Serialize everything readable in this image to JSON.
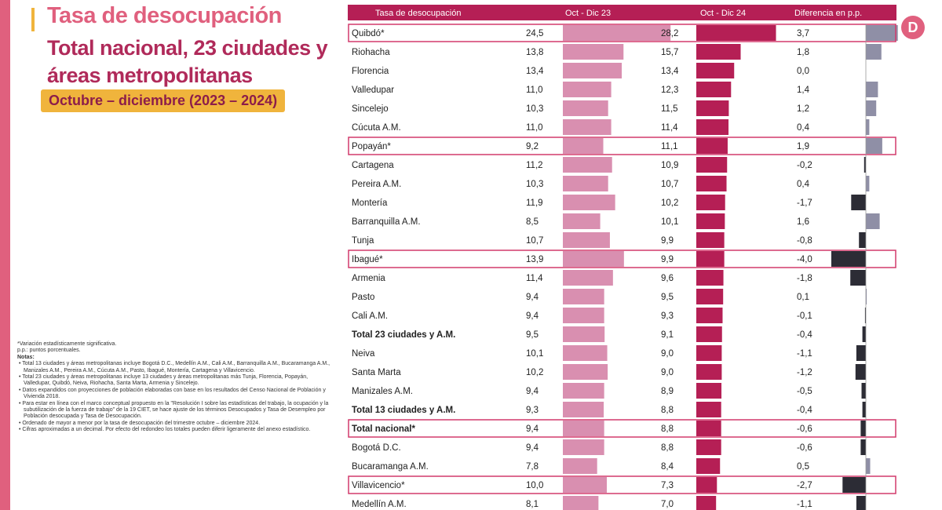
{
  "header": {
    "title_line1": "Tasa de desocupación",
    "title_line2": "Total nacional, 23 ciudades y áreas metropolitanas",
    "subtitle": "Octubre – diciembre (2023 – 2024)"
  },
  "notes": {
    "significance": "*Variación estadísticamente significativa.",
    "pp": "p.p.: puntos porcentuales.",
    "heading": "Notas:",
    "items": [
      "Total 13 ciudades y áreas metropolitanas incluye Bogotá D.C., Medellín A.M., Cali A.M., Barranquilla A.M., Bucaramanga A.M., Manizales A.M., Pereira A.M., Cúcuta A.M., Pasto, Ibagué, Montería, Cartagena y Villavicencio.",
      "Total 23 ciudades y áreas metropolitanas incluye 13 ciudades y áreas metropolitanas más Tunja, Florencia, Popayán, Valledupar, Quibdó, Neiva, Riohacha, Santa Marta, Armenia y Sincelejo.",
      "Datos expandidos con proyecciones de población elaboradas con base en los resultados del Censo Nacional de Población y Vivienda 2018.",
      "Para estar en línea con el marco conceptual propuesto en la \"Resolución I sobre las estadísticas del trabajo, la ocupación y la subutilización de la fuerza de trabajo\" de la 19 CIET, se hace ajuste de los términos Desocupados y Tasa de Desempleo por Población desocupada y Tasa de Desocupación.",
      "Ordenado de mayor a menor por la tasa de desocupación del trimestre octubre – diciembre 2024.",
      "Cifras aproximadas a un decimal. Por efecto del redondeo los totales pueden diferir ligeramente del anexo estadístico."
    ]
  },
  "logo_text": "D",
  "colors": {
    "header_bg": "#b51f55",
    "bar_2023": "#d98fb0",
    "bar_2024": "#b51f55",
    "diff_pos": "#8f8fa6",
    "diff_neg": "#2c2c35",
    "highlight": "#d23a6c",
    "accent": "#e0607e",
    "yellow": "#f0b43c"
  },
  "chart_data": {
    "type": "table",
    "columns": [
      "Tasa de desocupación",
      "Oct - Dic 23",
      "Oct - Dic 24",
      "Diferencia en p.p."
    ],
    "rows": [
      {
        "name": "Quibdó*",
        "v2023": "24,5",
        "v2024": "28,2",
        "diff": "3,7",
        "bold": false,
        "highlight": true
      },
      {
        "name": "Riohacha",
        "v2023": "13,8",
        "v2024": "15,7",
        "diff": "1,8",
        "bold": false,
        "highlight": false
      },
      {
        "name": "Florencia",
        "v2023": "13,4",
        "v2024": "13,4",
        "diff": "0,0",
        "bold": false,
        "highlight": false
      },
      {
        "name": "Valledupar",
        "v2023": "11,0",
        "v2024": "12,3",
        "diff": "1,4",
        "bold": false,
        "highlight": false
      },
      {
        "name": "Sincelejo",
        "v2023": "10,3",
        "v2024": "11,5",
        "diff": "1,2",
        "bold": false,
        "highlight": false
      },
      {
        "name": "Cúcuta A.M.",
        "v2023": "11,0",
        "v2024": "11,4",
        "diff": "0,4",
        "bold": false,
        "highlight": false
      },
      {
        "name": "Popayán*",
        "v2023": "9,2",
        "v2024": "11,1",
        "diff": "1,9",
        "bold": false,
        "highlight": true
      },
      {
        "name": "Cartagena",
        "v2023": "11,2",
        "v2024": "10,9",
        "diff": "-0,2",
        "bold": false,
        "highlight": false
      },
      {
        "name": "Pereira A.M.",
        "v2023": "10,3",
        "v2024": "10,7",
        "diff": "0,4",
        "bold": false,
        "highlight": false
      },
      {
        "name": "Montería",
        "v2023": "11,9",
        "v2024": "10,2",
        "diff": "-1,7",
        "bold": false,
        "highlight": false
      },
      {
        "name": "Barranquilla A.M.",
        "v2023": "8,5",
        "v2024": "10,1",
        "diff": "1,6",
        "bold": false,
        "highlight": false
      },
      {
        "name": "Tunja",
        "v2023": "10,7",
        "v2024": "9,9",
        "diff": "-0,8",
        "bold": false,
        "highlight": false
      },
      {
        "name": "Ibagué*",
        "v2023": "13,9",
        "v2024": "9,9",
        "diff": "-4,0",
        "bold": false,
        "highlight": true
      },
      {
        "name": "Armenia",
        "v2023": "11,4",
        "v2024": "9,6",
        "diff": "-1,8",
        "bold": false,
        "highlight": false
      },
      {
        "name": "Pasto",
        "v2023": "9,4",
        "v2024": "9,5",
        "diff": "0,1",
        "bold": false,
        "highlight": false
      },
      {
        "name": "Cali A.M.",
        "v2023": "9,4",
        "v2024": "9,3",
        "diff": "-0,1",
        "bold": false,
        "highlight": false
      },
      {
        "name": "Total 23 ciudades y A.M.",
        "v2023": "9,5",
        "v2024": "9,1",
        "diff": "-0,4",
        "bold": true,
        "highlight": false
      },
      {
        "name": "Neiva",
        "v2023": "10,1",
        "v2024": "9,0",
        "diff": "-1,1",
        "bold": false,
        "highlight": false
      },
      {
        "name": "Santa Marta",
        "v2023": "10,2",
        "v2024": "9,0",
        "diff": "-1,2",
        "bold": false,
        "highlight": false
      },
      {
        "name": "Manizales A.M.",
        "v2023": "9,4",
        "v2024": "8,9",
        "diff": "-0,5",
        "bold": false,
        "highlight": false
      },
      {
        "name": "Total 13 ciudades y A.M.",
        "v2023": "9,3",
        "v2024": "8,8",
        "diff": "-0,4",
        "bold": true,
        "highlight": false
      },
      {
        "name": "Total nacional*",
        "v2023": "9,4",
        "v2024": "8,8",
        "diff": "-0,6",
        "bold": true,
        "highlight": true
      },
      {
        "name": "Bogotá D.C.",
        "v2023": "9,4",
        "v2024": "8,8",
        "diff": "-0,6",
        "bold": false,
        "highlight": false
      },
      {
        "name": "Bucaramanga A.M.",
        "v2023": "7,8",
        "v2024": "8,4",
        "diff": "0,5",
        "bold": false,
        "highlight": false
      },
      {
        "name": "Villavicencio*",
        "v2023": "10,0",
        "v2024": "7,3",
        "diff": "-2,7",
        "bold": false,
        "highlight": true
      },
      {
        "name": "Medellín A.M.",
        "v2023": "8,1",
        "v2024": "7,0",
        "diff": "-1,1",
        "bold": false,
        "highlight": false
      }
    ]
  }
}
